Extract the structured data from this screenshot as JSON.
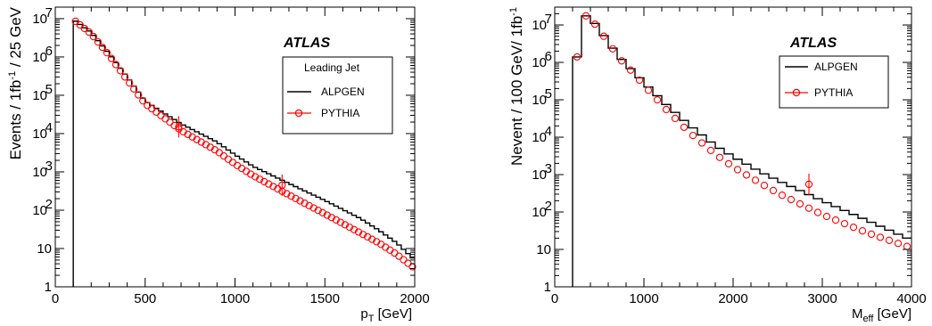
{
  "chart_data": [
    {
      "type": "line",
      "atlas_label": "ATLAS",
      "legend_title": "Leading Jet",
      "xlabel": "p",
      "xlabel_sub": "T",
      "xlabel_unit": " [GeV]",
      "ylabel": {
        "pre": "Events / 1fb",
        "sup": "-1",
        "post": " / 25 GeV"
      },
      "xlim": [
        0,
        2000
      ],
      "ylim": [
        1,
        20000000
      ],
      "yscale": "log",
      "x_ticks": [
        "0",
        "500",
        "1000",
        "1500",
        "2000"
      ],
      "y_ticks": [
        {
          "base": "1",
          "exp": ""
        },
        {
          "base": "10",
          "exp": ""
        },
        {
          "base": "10",
          "exp": "2"
        },
        {
          "base": "10",
          "exp": "3"
        },
        {
          "base": "10",
          "exp": "4"
        },
        {
          "base": "10",
          "exp": "5"
        },
        {
          "base": "10",
          "exp": "6"
        },
        {
          "base": "10",
          "exp": "7"
        }
      ],
      "bin_width": 25,
      "series": [
        {
          "name": "ALPGEN",
          "style": "histogram",
          "color": "#000000",
          "x_start": 100,
          "x_end": 2000,
          "knots": [
            [
              100,
              9500000
            ],
            [
              200,
              4300000
            ],
            [
              300,
              1200000
            ],
            [
              400,
              300000
            ],
            [
              500,
              70000
            ],
            [
              700,
              18000
            ],
            [
              900,
              6000
            ],
            [
              1000,
              2800
            ],
            [
              1100,
              1400
            ],
            [
              1300,
              500
            ],
            [
              1500,
              180
            ],
            [
              1700,
              60
            ],
            [
              1800,
              30
            ],
            [
              1900,
              14
            ],
            [
              2000,
              5
            ]
          ]
        },
        {
          "name": "PYTHIA",
          "style": "markers",
          "color": "#ff0000",
          "x_start": 100,
          "x_end": 2000,
          "knots": [
            [
              100,
              9500000
            ],
            [
              200,
              4000000
            ],
            [
              300,
              1100000
            ],
            [
              400,
              250000
            ],
            [
              500,
              60000
            ],
            [
              700,
              12000
            ],
            [
              900,
              3500
            ],
            [
              1000,
              1600
            ],
            [
              1100,
              800
            ],
            [
              1300,
              250
            ],
            [
              1500,
              80
            ],
            [
              1700,
              25
            ],
            [
              1800,
              14
            ],
            [
              1900,
              7
            ],
            [
              2000,
              3
            ]
          ],
          "outliers": [
            [
              687,
              15000
            ],
            [
              1262,
              450
            ]
          ]
        }
      ]
    },
    {
      "type": "line",
      "atlas_label": "ATLAS",
      "legend_title": "",
      "xlabel": "M",
      "xlabel_sub": "eff",
      "xlabel_unit": " [GeV]",
      "ylabel": {
        "pre": "Nevent / 100 GeV/ 1fb",
        "sup": "-1",
        "post": ""
      },
      "xlim": [
        0,
        4000
      ],
      "ylim": [
        1,
        30000000
      ],
      "yscale": "log",
      "x_ticks": [
        "0",
        "1000",
        "2000",
        "3000",
        "4000"
      ],
      "y_ticks": [
        {
          "base": "1",
          "exp": ""
        },
        {
          "base": "10",
          "exp": ""
        },
        {
          "base": "10",
          "exp": "2"
        },
        {
          "base": "10",
          "exp": "3"
        },
        {
          "base": "10",
          "exp": "4"
        },
        {
          "base": "10",
          "exp": "5"
        },
        {
          "base": "10",
          "exp": "6"
        },
        {
          "base": "10",
          "exp": "7"
        }
      ],
      "bin_width": 100,
      "series": [
        {
          "name": "ALPGEN",
          "style": "histogram",
          "color": "#000000",
          "x_start": 200,
          "x_end": 4000,
          "knots": [
            [
              250,
              1400000
            ],
            [
              350,
              17500000
            ],
            [
              450,
              11000000
            ],
            [
              550,
              5200000
            ],
            [
              650,
              2400000
            ],
            [
              750,
              1200000
            ],
            [
              850,
              680000
            ],
            [
              1050,
              220000
            ],
            [
              1250,
              75000
            ],
            [
              1500,
              22000
            ],
            [
              1800,
              6000
            ],
            [
              2000,
              3000
            ],
            [
              2300,
              1200
            ],
            [
              2500,
              700
            ],
            [
              3000,
              200
            ],
            [
              3500,
              60
            ],
            [
              3950,
              20
            ]
          ]
        },
        {
          "name": "PYTHIA",
          "style": "markers",
          "color": "#ff0000",
          "x_start": 200,
          "x_end": 4000,
          "knots": [
            [
              250,
              1400000
            ],
            [
              350,
              17500000
            ],
            [
              450,
              10500000
            ],
            [
              550,
              5000000
            ],
            [
              650,
              2300000
            ],
            [
              750,
              1100000
            ],
            [
              850,
              620000
            ],
            [
              1050,
              180000
            ],
            [
              1250,
              55000
            ],
            [
              1500,
              14000
            ],
            [
              1800,
              3500
            ],
            [
              2000,
              1600
            ],
            [
              2300,
              600
            ],
            [
              2500,
              320
            ],
            [
              3000,
              85
            ],
            [
              3500,
              28
            ],
            [
              3950,
              12
            ]
          ],
          "outliers": [
            [
              2850,
              550
            ]
          ]
        }
      ]
    }
  ]
}
